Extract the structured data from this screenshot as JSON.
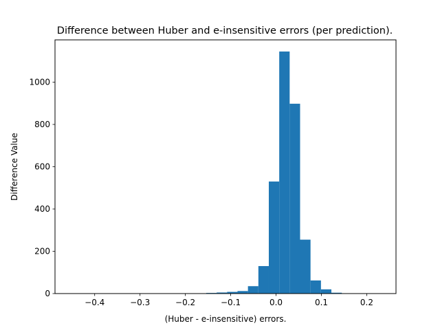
{
  "chart_data": {
    "type": "bar",
    "title": "Difference between  Huber and e-insensitive errors (per prediction).",
    "xlabel": "(Huber - e-insensitive) errors.",
    "ylabel": "Difference Value",
    "xlim": [
      -0.4875,
      0.2645
    ],
    "ylim": [
      0,
      1200
    ],
    "xticks": [
      -0.4,
      -0.3,
      -0.2,
      -0.1,
      0.0,
      0.1,
      0.2
    ],
    "xtick_labels": [
      "−0.4",
      "−0.3",
      "−0.2",
      "−0.1",
      "0.0",
      "0.1",
      "0.2"
    ],
    "yticks": [
      0,
      200,
      400,
      600,
      800,
      1000
    ],
    "ytick_labels": [
      "0",
      "200",
      "400",
      "600",
      "800",
      "1000"
    ],
    "bin_edges": [
      -0.453,
      -0.43,
      -0.407,
      -0.384,
      -0.361,
      -0.338,
      -0.315,
      -0.292,
      -0.269,
      -0.246,
      -0.223,
      -0.2,
      -0.177,
      -0.154,
      -0.131,
      -0.108,
      -0.085,
      -0.062,
      -0.039,
      -0.016,
      0.007,
      0.03,
      0.053,
      0.076,
      0.099,
      0.122,
      0.145,
      0.168,
      0.191,
      0.214,
      0.237
    ],
    "counts": [
      1,
      0,
      0,
      0,
      0,
      0,
      0,
      0,
      0,
      0,
      0,
      0,
      0,
      3,
      5,
      8,
      12,
      35,
      130,
      530,
      1145,
      898,
      255,
      62,
      20,
      4,
      1,
      0,
      0,
      1
    ],
    "color": "#1f77b4",
    "grid": false
  }
}
